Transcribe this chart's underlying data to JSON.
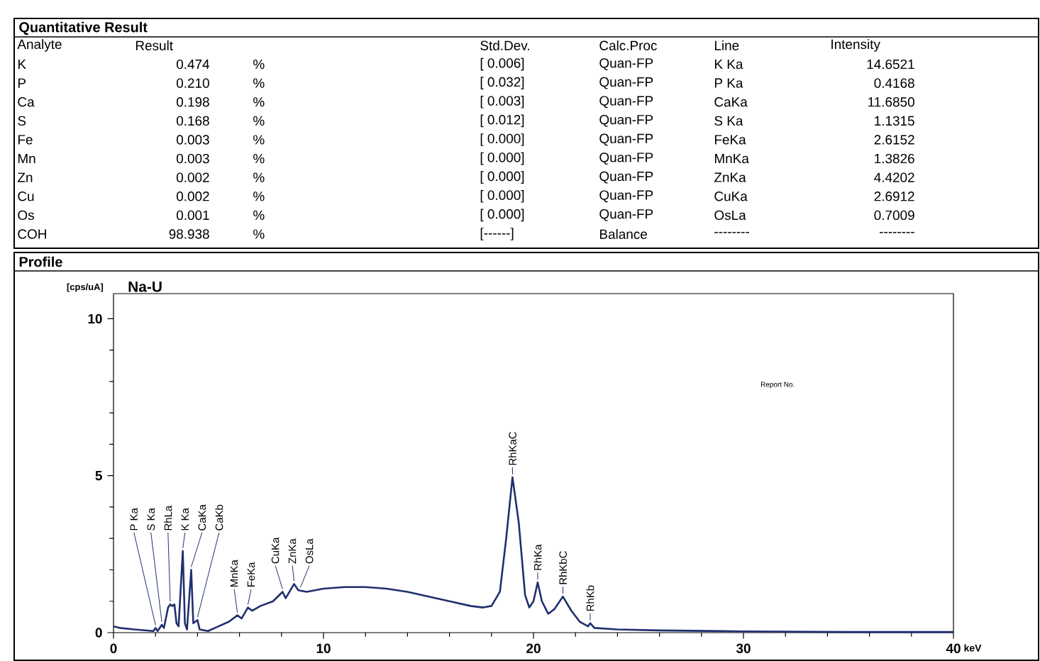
{
  "chart_data": [
    {
      "type": "other",
      "title": "Quantitative Result",
      "annotations": [
        "Analyte",
        "Result",
        "Std.Dev.",
        "Calc.Proc",
        "Line",
        "Intensity",
        "K",
        "0.474",
        "%",
        "[ 0.006]",
        "Quan-FP",
        "K Ka",
        "14.6521",
        "P",
        "0.210",
        "%",
        "[ 0.032]",
        "Quan-FP",
        "P Ka",
        "0.4168",
        "Ca",
        "0.198",
        "%",
        "[ 0.003]",
        "Quan-FP",
        "CaKa",
        "11.6850",
        "S",
        "0.168",
        "%",
        "[ 0.012]",
        "Quan-FP",
        "S Ka",
        "1.1315",
        "Fe",
        "0.003",
        "%",
        "[ 0.000]",
        "Quan-FP",
        "FeKa",
        "2.6152",
        "Mn",
        "0.003",
        "%",
        "[ 0.000]",
        "Quan-FP",
        "MnKa",
        "1.3826",
        "Zn",
        "0.002",
        "%",
        "[ 0.000]",
        "Quan-FP",
        "ZnKa",
        "4.4202",
        "Cu",
        "0.002",
        "%",
        "[ 0.000]",
        "Quan-FP",
        "CuKa",
        "2.6912",
        "Os",
        "0.001",
        "%",
        "[ 0.000]",
        "Quan-FP",
        "OsLa",
        "0.7009",
        "COH",
        "98.938",
        "%",
        "[------]",
        "Balance",
        "--------",
        "--------"
      ]
    },
    {
      "type": "line",
      "title": "Profile",
      "subtitle": "Na-U",
      "ylabel": "[cps/uA]",
      "xlabel": "keV",
      "color": "#1f2f6e",
      "xlim": [
        0,
        40
      ],
      "ylim": [
        0,
        10.8
      ],
      "xticks": [
        0,
        10,
        20,
        30,
        40
      ],
      "yticks": [
        0,
        5,
        10
      ],
      "grid": false,
      "x": [
        0,
        0.3,
        1,
        1.9,
        2.0,
        2.1,
        2.3,
        2.4,
        2.6,
        2.7,
        2.8,
        2.9,
        3.0,
        3.1,
        3.3,
        3.4,
        3.5,
        3.7,
        3.8,
        4.0,
        4.1,
        4.5,
        5,
        5.5,
        5.9,
        6.1,
        6.4,
        6.6,
        7.0,
        7.6,
        8.05,
        8.2,
        8.6,
        8.8,
        9.2,
        10,
        11,
        12,
        13,
        14,
        15,
        16,
        17,
        17.6,
        18,
        18.4,
        18.7,
        19.0,
        19.3,
        19.6,
        19.8,
        20.0,
        20.2,
        20.4,
        20.7,
        21.0,
        21.4,
        21.8,
        22.2,
        22.6,
        22.7,
        22.9,
        24,
        26,
        30,
        35,
        40
      ],
      "values": [
        0.2,
        0.15,
        0.1,
        0.05,
        0.15,
        0.05,
        0.25,
        0.15,
        0.8,
        0.9,
        0.85,
        0.9,
        0.3,
        0.2,
        2.6,
        0.3,
        0.1,
        2.0,
        0.3,
        0.4,
        0.1,
        0.05,
        0.2,
        0.35,
        0.55,
        0.45,
        0.8,
        0.7,
        0.85,
        1.0,
        1.3,
        1.1,
        1.55,
        1.35,
        1.3,
        1.4,
        1.45,
        1.45,
        1.4,
        1.3,
        1.15,
        1.0,
        0.85,
        0.8,
        0.85,
        1.3,
        3.0,
        4.95,
        3.5,
        1.2,
        0.8,
        1.0,
        1.6,
        1.0,
        0.6,
        0.75,
        1.15,
        0.7,
        0.35,
        0.2,
        0.3,
        0.15,
        0.1,
        0.07,
        0.04,
        0.02,
        0.02
      ],
      "annotations": [
        "Report No.",
        {
          "text": "P Ka",
          "x": 2.0,
          "y": 0.15
        },
        {
          "text": "S Ka",
          "x": 2.3,
          "y": 0.25
        },
        {
          "text": "RhLa",
          "x": 2.7,
          "y": 0.9
        },
        {
          "text": "K Ka",
          "x": 3.3,
          "y": 2.6
        },
        {
          "text": "CaKa",
          "x": 3.7,
          "y": 2.0
        },
        {
          "text": "CaKb",
          "x": 4.0,
          "y": 0.4
        },
        {
          "text": "MnKa",
          "x": 5.9,
          "y": 0.55
        },
        {
          "text": "FeKa",
          "x": 6.4,
          "y": 0.8
        },
        {
          "text": "CuKa",
          "x": 8.05,
          "y": 1.3
        },
        {
          "text": "ZnKa",
          "x": 8.6,
          "y": 1.55
        },
        {
          "text": "OsLa",
          "x": 8.9,
          "y": 1.35
        },
        {
          "text": "RhKaC",
          "x": 19.0,
          "y": 4.95
        },
        {
          "text": "RhKa",
          "x": 20.2,
          "y": 1.6
        },
        {
          "text": "RhKbC",
          "x": 21.4,
          "y": 1.15
        },
        {
          "text": "RhKb",
          "x": 22.7,
          "y": 0.3
        }
      ]
    }
  ]
}
